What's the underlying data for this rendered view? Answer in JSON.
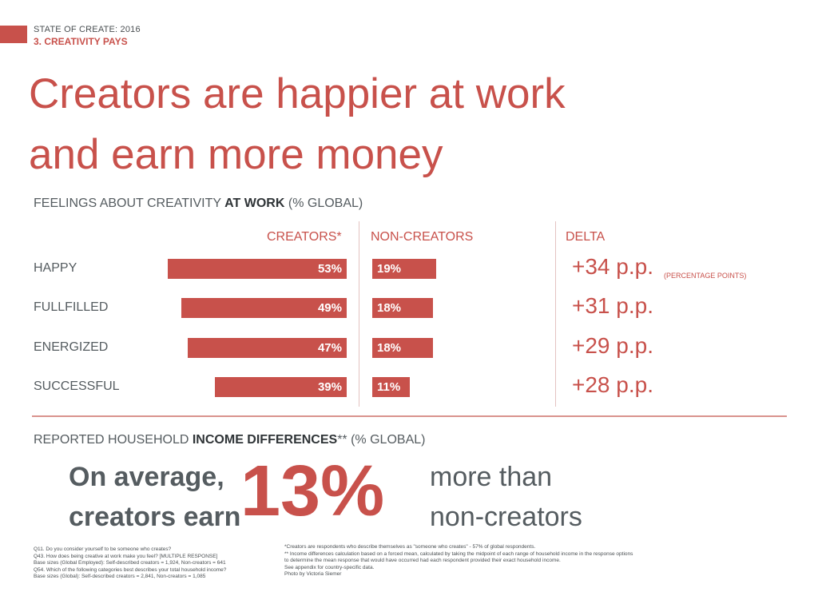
{
  "header": {
    "supertitle": "STATE OF CREATE: 2016",
    "section": "3. CREATIVITY PAYS"
  },
  "headline": {
    "line1": "Creators are happier at work",
    "line2": "and earn more money"
  },
  "feelings": {
    "subtitle_pre": "FEELINGS ABOUT CREATIVITY ",
    "subtitle_bold": "AT WORK",
    "subtitle_post": " (% GLOBAL)",
    "col_creators": "CREATORS*",
    "col_noncreators": "NON-CREATORS",
    "col_delta": "DELTA",
    "delta_note": "(PERCENTAGE POINTS)"
  },
  "chart_data": {
    "type": "bar",
    "categories": [
      "HAPPY",
      "FULLFILLED",
      "ENERGIZED",
      "SUCCESSFUL"
    ],
    "series": [
      {
        "name": "CREATORS*",
        "values": [
          53,
          49,
          47,
          39
        ],
        "labels": [
          "53%",
          "49%",
          "47%",
          "39%"
        ]
      },
      {
        "name": "NON-CREATORS",
        "values": [
          19,
          18,
          18,
          11
        ],
        "labels": [
          "19%",
          "18%",
          "18%",
          "11%"
        ]
      }
    ],
    "delta": [
      "+34 p.p.",
      "+31 p.p.",
      "+29 p.p.",
      "+28 p.p."
    ],
    "ylabel": "% GLOBAL",
    "colors": {
      "bar": "#c8514b"
    }
  },
  "income": {
    "subtitle_pre": "REPORTED HOUSEHOLD ",
    "subtitle_bold": "INCOME DIFFERENCES",
    "subtitle_post": "** (% GLOBAL)",
    "left_line1": "On average,",
    "left_line2": "creators earn",
    "big_value": "13%",
    "right_line1": "more than",
    "right_line2": "non-creators"
  },
  "footnotes": {
    "left": [
      "Q11. Do you consider yourself to be someone who creates?",
      "Q43. How does being creative at work make you feel? [MULTIPLE RESPONSE]",
      "Base sizes (Global Employed): Self-described creators = 1,924,  Non-creators = 641",
      "Q54. Which of the following categories best describes your total household income?",
      "Base sizes (Global): Self-described creators = 2,841, Non-creators = 1,085"
    ],
    "right": [
      "*Creators are respondents who describe themselves as \"someone who creates\" - 57% of global respondents.",
      "** Income differences calculation based on a forced mean, calculated by taking the midpoint of each range of household income in the response options",
      "to determine the mean response that would have occurred had each respondent provided their exact household income.",
      "See appendix for country-specific data.",
      "Photo by Victoria Siemer"
    ]
  },
  "colors": {
    "accent": "#c8514b",
    "text": "#555c60",
    "divider": "#d9938e"
  }
}
